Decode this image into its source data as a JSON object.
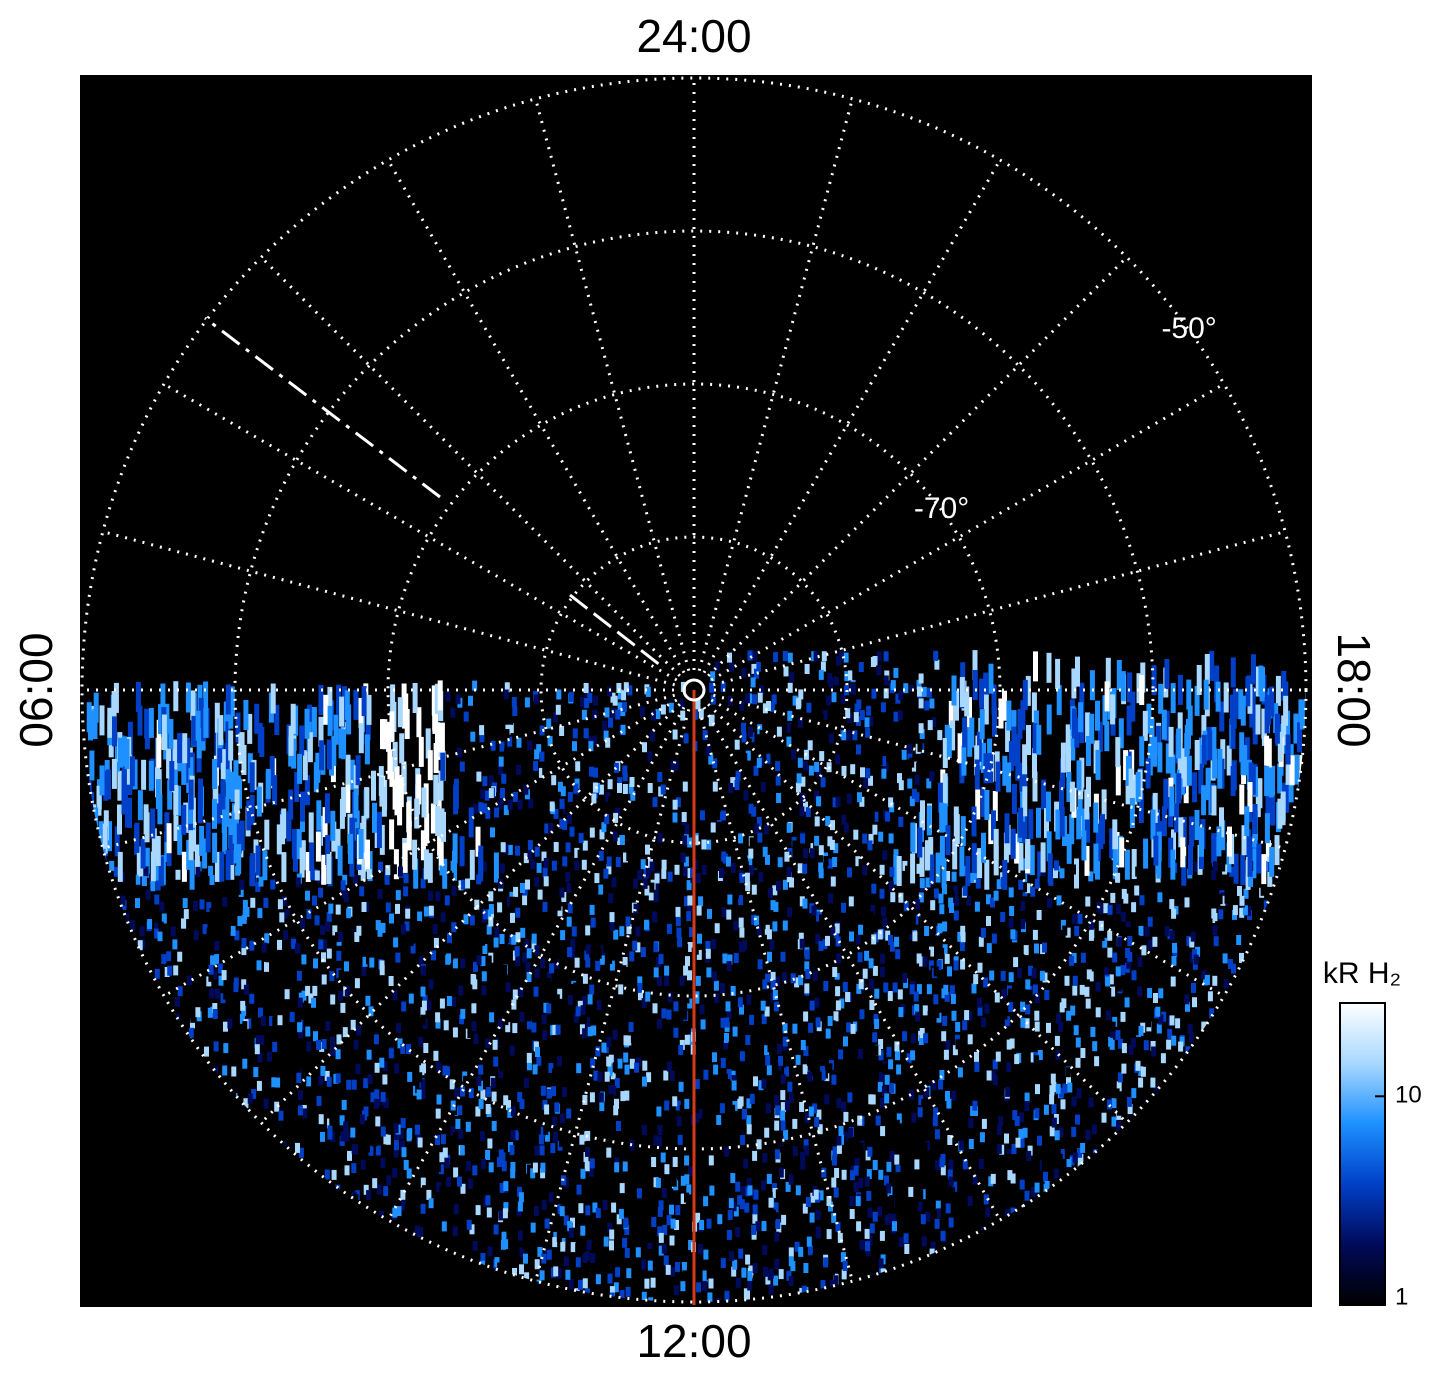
{
  "chart_data": {
    "type": "polar",
    "theta_ticks": [
      {
        "value": 24,
        "label": "24:00"
      },
      {
        "value": 6,
        "label": "06:00"
      },
      {
        "value": 12,
        "label": "12:00"
      },
      {
        "value": 18,
        "label": "18:00"
      }
    ],
    "rlim": [
      -90,
      -50
    ],
    "rticks": [
      {
        "value": -70,
        "label": "-70°"
      },
      {
        "value": -50,
        "label": "-50°"
      }
    ],
    "colorbar": {
      "label": "kR H₂",
      "scale": "log",
      "lim": [
        1,
        28
      ],
      "ticks": [
        1,
        10
      ],
      "colors": [
        "#000000",
        "#000a5a",
        "#0040c8",
        "#1e90ff",
        "#a8d8ff",
        "#ffffff"
      ]
    }
  }
}
